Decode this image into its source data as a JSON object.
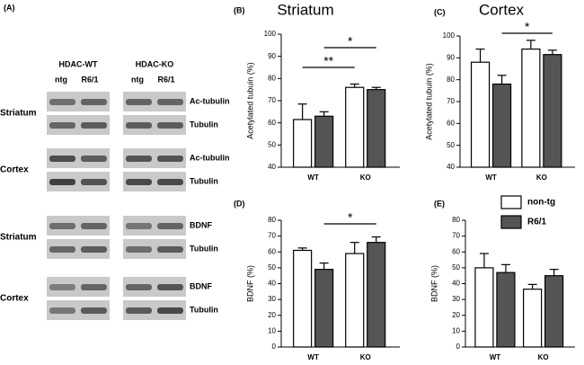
{
  "blot_panel": {
    "label": "(A)",
    "groups": [
      "HDAC-WT",
      "HDAC-KO"
    ],
    "lanes": [
      "ntg",
      "R6/1"
    ],
    "sections": [
      {
        "region": "Striatum",
        "bands": [
          "Ac-tubulin",
          "Tubulin"
        ]
      },
      {
        "region": "Cortex",
        "bands": [
          "Ac-tubulin",
          "Tubulin"
        ]
      },
      {
        "region": "Striatum",
        "bands": [
          "BDNF",
          "Tubulin"
        ]
      },
      {
        "region": "Cortex",
        "bands": [
          "BDNF",
          "Tubulin"
        ]
      }
    ]
  },
  "chart_data": [
    {
      "type": "bar",
      "panel": "(B)",
      "title": "Striatum",
      "y_label": "Acetylated tubuin (%)",
      "categories": [
        "WT",
        "KO"
      ],
      "series": [
        {
          "color": "#ffffff",
          "values": [
            61.5,
            76
          ],
          "errors": [
            7,
            1.5
          ]
        },
        {
          "color": "#555555",
          "values": [
            63,
            75
          ],
          "errors": [
            2,
            1
          ]
        }
      ],
      "ylim": [
        40,
        100
      ],
      "yticks": [
        40,
        50,
        60,
        70,
        80,
        90,
        100
      ],
      "annotations": [
        "**",
        "*"
      ]
    },
    {
      "type": "bar",
      "panel": "(C)",
      "title": "Cortex",
      "y_label": "Acetylated tubuin (%)",
      "categories": [
        "WT",
        "KO"
      ],
      "series": [
        {
          "color": "#ffffff",
          "values": [
            88,
            94
          ],
          "errors": [
            6,
            4
          ]
        },
        {
          "color": "#555555",
          "values": [
            78,
            91.5
          ],
          "errors": [
            4,
            2
          ]
        }
      ],
      "ylim": [
        40,
        100
      ],
      "yticks": [
        40,
        50,
        60,
        70,
        80,
        90,
        100
      ],
      "annotations": [
        "*"
      ]
    },
    {
      "type": "bar",
      "panel": "(D)",
      "y_label": "BDNF (%)",
      "categories": [
        "WT",
        "KO"
      ],
      "series": [
        {
          "color": "#ffffff",
          "values": [
            61,
            59
          ],
          "errors": [
            1.5,
            7
          ]
        },
        {
          "color": "#555555",
          "values": [
            49,
            66
          ],
          "errors": [
            4,
            3.5
          ]
        }
      ],
      "ylim": [
        0,
        80
      ],
      "yticks": [
        0,
        10,
        20,
        30,
        40,
        50,
        60,
        70,
        80
      ],
      "annotations": [
        "*"
      ]
    },
    {
      "type": "bar",
      "panel": "(E)",
      "y_label": "BDNF (%)",
      "categories": [
        "WT",
        "KO"
      ],
      "series": [
        {
          "name": "non-tg",
          "color": "#ffffff",
          "values": [
            50,
            36.5
          ],
          "errors": [
            9,
            3
          ]
        },
        {
          "name": "R6/1",
          "color": "#555555",
          "values": [
            47,
            45
          ],
          "errors": [
            5,
            4
          ]
        }
      ],
      "ylim": [
        0,
        80
      ],
      "yticks": [
        0,
        10,
        20,
        30,
        40,
        50,
        60,
        70,
        80
      ],
      "legend": true
    }
  ]
}
